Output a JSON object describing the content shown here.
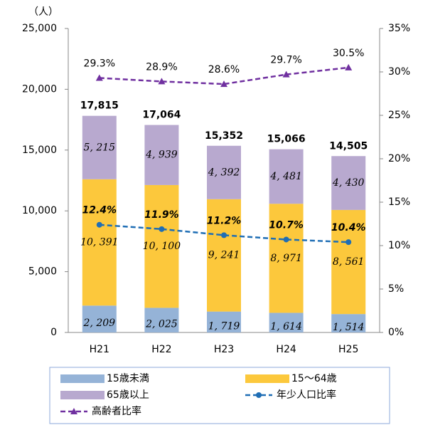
{
  "chart_data": {
    "type": "bar",
    "y_unit_label": "（人）",
    "categories": [
      "H21",
      "H22",
      "H23",
      "H24",
      "H25"
    ],
    "series": [
      {
        "name": "15歳未満",
        "color": "#95b3d7",
        "values": [
          2209,
          2025,
          1719,
          1614,
          1514
        ],
        "value_labels": [
          "2, 209",
          "2, 025",
          "1, 719",
          "1, 614",
          "1, 514"
        ]
      },
      {
        "name": "15〜64歳",
        "color": "#fcc83c",
        "values": [
          10391,
          10100,
          9241,
          8971,
          8561
        ],
        "value_labels": [
          "10, 391",
          "10, 100",
          "9, 241",
          "8, 971",
          "8, 561"
        ]
      },
      {
        "name": "65歳以上",
        "color": "#b8a9cf",
        "values": [
          5215,
          4939,
          4392,
          4481,
          4430
        ],
        "value_labels": [
          "5, 215",
          "4, 939",
          "4, 392",
          "4, 481",
          "4, 430"
        ]
      },
      {
        "name": "年少人口比率",
        "type": "line",
        "axis": "y2",
        "color": "#1f6eb5",
        "marker": "circle",
        "values": [
          12.4,
          11.9,
          11.2,
          10.7,
          10.4
        ],
        "value_labels": [
          "12.4%",
          "11.9%",
          "11.2%",
          "10.7%",
          "10.4%"
        ]
      },
      {
        "name": "高齢者比率",
        "type": "line",
        "axis": "y2",
        "color": "#7030a0",
        "marker": "triangle",
        "values": [
          29.3,
          28.9,
          28.6,
          29.7,
          30.5
        ],
        "value_labels": [
          "29.3%",
          "28.9%",
          "28.6%",
          "29.7%",
          "30.5%"
        ]
      }
    ],
    "totals": [
      17815,
      17064,
      15352,
      15066,
      14505
    ],
    "total_labels": [
      "17,815",
      "17,064",
      "15,352",
      "15,066",
      "14,505"
    ],
    "ylim": [
      0,
      25000
    ],
    "yticks": [
      0,
      {
        "value": 5000,
        "label": "5,000"
      },
      {
        "value": 10000,
        "label": "10,000"
      },
      {
        "value": 15000,
        "label": "15,000"
      },
      {
        "value": 20000,
        "label": "20,000"
      },
      {
        "value": 25000,
        "label": "25,000"
      }
    ],
    "y2lim": [
      0,
      35
    ],
    "y2ticks": [
      {
        "value": 0,
        "label": "0%"
      },
      {
        "value": 5,
        "label": "5%"
      },
      {
        "value": 10,
        "label": "10%"
      },
      {
        "value": 15,
        "label": "15%"
      },
      {
        "value": 20,
        "label": "20%"
      },
      {
        "value": 25,
        "label": "25%"
      },
      {
        "value": 30,
        "label": "30%"
      },
      {
        "value": 35,
        "label": "35%"
      }
    ],
    "grid": false
  }
}
